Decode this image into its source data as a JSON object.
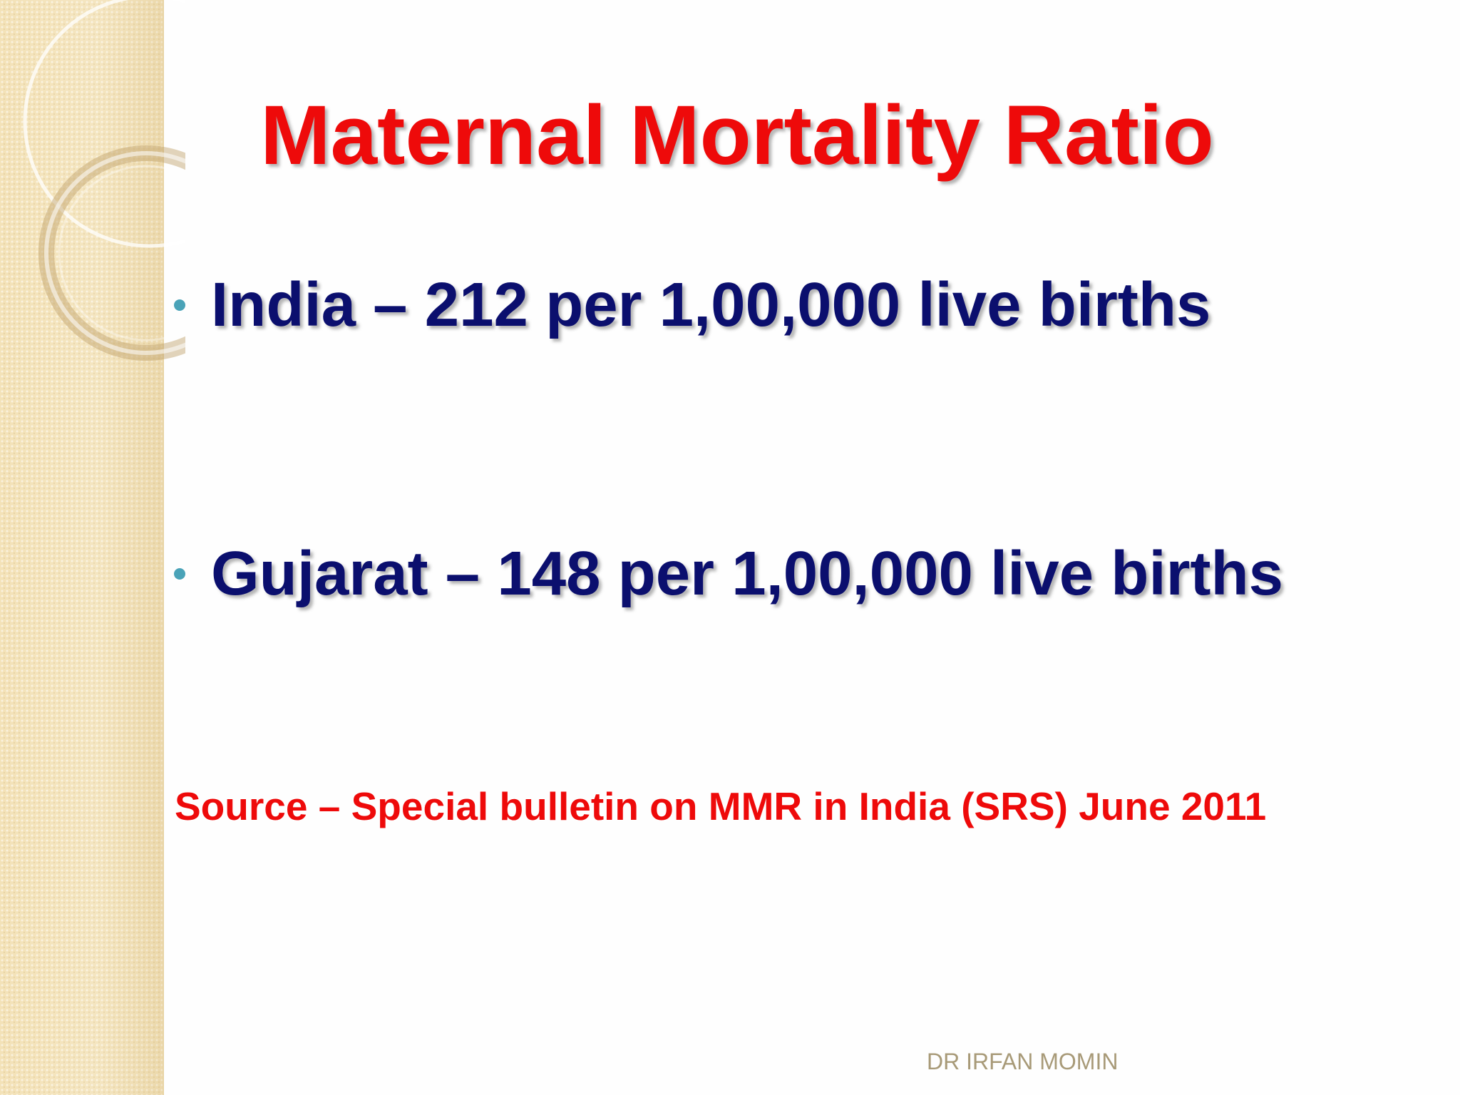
{
  "slide": {
    "title": "Maternal Mortality Ratio",
    "bullets": [
      {
        "text": "India – 212 per 1,00,000 live births"
      },
      {
        "text": "Gujarat – 148 per 1,00,000 live births"
      }
    ],
    "source": "Source – Special bulletin on MMR in India (SRS) June 2011",
    "footer": "DR IRFAN MOMIN"
  },
  "colors": {
    "title": "#ee0a0a",
    "bullet_text": "#0b0f6e",
    "bullet_dot": "#4aa3b8",
    "source": "#ee0a0a",
    "footer": "#a89a78",
    "side_strip": "#f3e2b8"
  },
  "icons": [
    "bullet-dot-icon",
    "ring-decoration-icon"
  ]
}
